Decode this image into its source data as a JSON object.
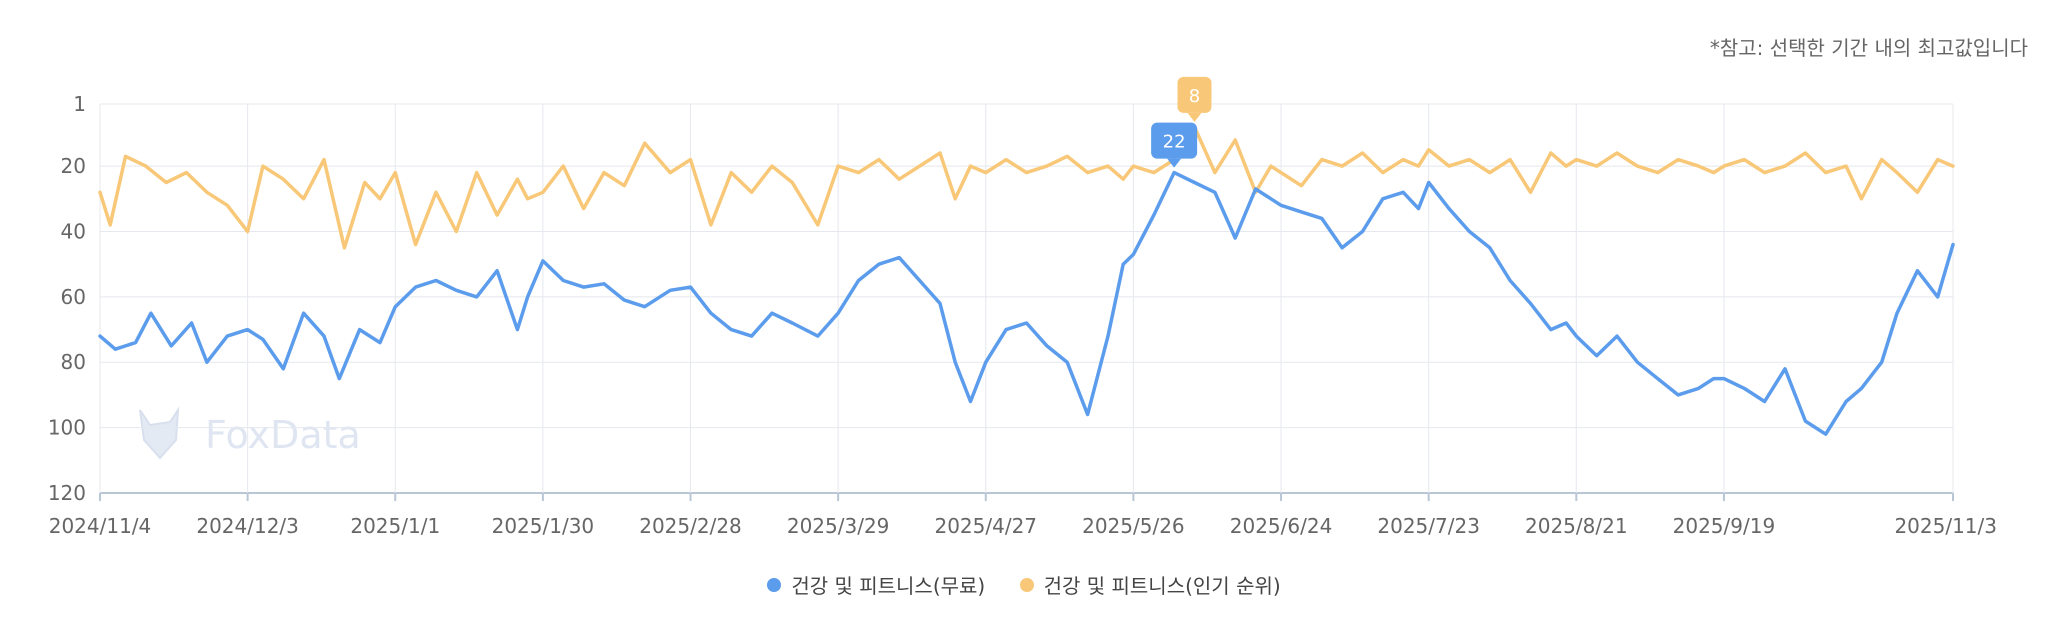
{
  "note": "*참고: 선택한 기간 내의 최고값입니다",
  "watermark": "FoxData",
  "colors": {
    "free": "#5b9cec",
    "popular": "#f8c878",
    "grid": "#e5e8ee",
    "axis": "#b9c6d6"
  },
  "chart_data": {
    "type": "line",
    "y_inverted": true,
    "ylim": [
      1,
      120
    ],
    "y_ticks": [
      "1",
      "20",
      "40",
      "60",
      "80",
      "100",
      "120"
    ],
    "x_ticks": [
      "2024/11/4",
      "2024/12/3",
      "2025/1/1",
      "2025/1/30",
      "2025/2/28",
      "2025/3/29",
      "2025/4/27",
      "2025/5/26",
      "2025/6/24",
      "2025/7/23",
      "2025/8/21",
      "2025/9/19",
      "2025/11/3"
    ],
    "series": [
      {
        "name": "건강 및 피트니스(무료)",
        "color": "#5b9cec",
        "points": [
          [
            "2024/11/4",
            72
          ],
          [
            "2024/11/7",
            76
          ],
          [
            "2024/11/11",
            74
          ],
          [
            "2024/11/14",
            65
          ],
          [
            "2024/11/18",
            75
          ],
          [
            "2024/11/22",
            68
          ],
          [
            "2024/11/25",
            80
          ],
          [
            "2024/11/29",
            72
          ],
          [
            "2024/12/3",
            70
          ],
          [
            "2024/12/6",
            73
          ],
          [
            "2024/12/10",
            82
          ],
          [
            "2024/12/14",
            65
          ],
          [
            "2024/12/18",
            72
          ],
          [
            "2024/12/21",
            85
          ],
          [
            "2024/12/25",
            70
          ],
          [
            "2024/12/29",
            74
          ],
          [
            "2025/1/1",
            63
          ],
          [
            "2025/1/5",
            57
          ],
          [
            "2025/1/9",
            55
          ],
          [
            "2025/1/13",
            58
          ],
          [
            "2025/1/17",
            60
          ],
          [
            "2025/1/21",
            52
          ],
          [
            "2025/1/25",
            70
          ],
          [
            "2025/1/27",
            60
          ],
          [
            "2025/1/30",
            49
          ],
          [
            "2025/2/3",
            55
          ],
          [
            "2025/2/7",
            57
          ],
          [
            "2025/2/11",
            56
          ],
          [
            "2025/2/15",
            61
          ],
          [
            "2025/2/19",
            63
          ],
          [
            "2025/2/24",
            58
          ],
          [
            "2025/2/28",
            57
          ],
          [
            "2025/3/4",
            65
          ],
          [
            "2025/3/8",
            70
          ],
          [
            "2025/3/12",
            72
          ],
          [
            "2025/3/16",
            65
          ],
          [
            "2025/3/20",
            68
          ],
          [
            "2025/3/25",
            72
          ],
          [
            "2025/3/29",
            65
          ],
          [
            "2025/4/2",
            55
          ],
          [
            "2025/4/6",
            50
          ],
          [
            "2025/4/10",
            48
          ],
          [
            "2025/4/14",
            55
          ],
          [
            "2025/4/18",
            62
          ],
          [
            "2025/4/21",
            80
          ],
          [
            "2025/4/24",
            92
          ],
          [
            "2025/4/27",
            80
          ],
          [
            "2025/5/1",
            70
          ],
          [
            "2025/5/5",
            68
          ],
          [
            "2025/5/9",
            75
          ],
          [
            "2025/5/13",
            80
          ],
          [
            "2025/5/17",
            96
          ],
          [
            "2025/5/21",
            72
          ],
          [
            "2025/5/24",
            50
          ],
          [
            "2025/5/26",
            47
          ],
          [
            "2025/5/30",
            35
          ],
          [
            "2025/6/3",
            22
          ],
          [
            "2025/6/7",
            25
          ],
          [
            "2025/6/11",
            28
          ],
          [
            "2025/6/15",
            42
          ],
          [
            "2025/6/19",
            27
          ],
          [
            "2025/6/22",
            30
          ],
          [
            "2025/6/24",
            32
          ],
          [
            "2025/6/28",
            34
          ],
          [
            "2025/7/2",
            36
          ],
          [
            "2025/7/6",
            45
          ],
          [
            "2025/7/10",
            40
          ],
          [
            "2025/7/14",
            30
          ],
          [
            "2025/7/18",
            28
          ],
          [
            "2025/7/21",
            33
          ],
          [
            "2025/7/23",
            25
          ],
          [
            "2025/7/27",
            33
          ],
          [
            "2025/7/31",
            40
          ],
          [
            "2025/8/4",
            45
          ],
          [
            "2025/8/8",
            55
          ],
          [
            "2025/8/12",
            62
          ],
          [
            "2025/8/16",
            70
          ],
          [
            "2025/8/19",
            68
          ],
          [
            "2025/8/21",
            72
          ],
          [
            "2025/8/25",
            78
          ],
          [
            "2025/8/29",
            72
          ],
          [
            "2025/9/2",
            80
          ],
          [
            "2025/9/6",
            85
          ],
          [
            "2025/9/10",
            90
          ],
          [
            "2025/9/14",
            88
          ],
          [
            "2025/9/17",
            85
          ],
          [
            "2025/9/19",
            85
          ],
          [
            "2025/9/23",
            88
          ],
          [
            "2025/9/27",
            92
          ],
          [
            "2025/10/1",
            82
          ],
          [
            "2025/10/5",
            98
          ],
          [
            "2025/10/9",
            102
          ],
          [
            "2025/10/13",
            92
          ],
          [
            "2025/10/16",
            88
          ],
          [
            "2025/10/20",
            80
          ],
          [
            "2025/10/23",
            65
          ],
          [
            "2025/10/27",
            52
          ],
          [
            "2025/10/31",
            60
          ],
          [
            "2025/11/3",
            44
          ]
        ]
      },
      {
        "name": "건강 및 피트니스(인기 순위)",
        "color": "#f8c878",
        "points": [
          [
            "2024/11/4",
            28
          ],
          [
            "2024/11/6",
            38
          ],
          [
            "2024/11/9",
            17
          ],
          [
            "2024/11/13",
            20
          ],
          [
            "2024/11/17",
            25
          ],
          [
            "2024/11/21",
            22
          ],
          [
            "2024/11/25",
            28
          ],
          [
            "2024/11/29",
            32
          ],
          [
            "2024/12/3",
            40
          ],
          [
            "2024/12/6",
            20
          ],
          [
            "2024/12/10",
            24
          ],
          [
            "2024/12/14",
            30
          ],
          [
            "2024/12/18",
            18
          ],
          [
            "2024/12/22",
            45
          ],
          [
            "2024/12/26",
            25
          ],
          [
            "2024/12/29",
            30
          ],
          [
            "2025/1/1",
            22
          ],
          [
            "2025/1/5",
            44
          ],
          [
            "2025/1/9",
            28
          ],
          [
            "2025/1/13",
            40
          ],
          [
            "2025/1/17",
            22
          ],
          [
            "2025/1/21",
            35
          ],
          [
            "2025/1/25",
            24
          ],
          [
            "2025/1/27",
            30
          ],
          [
            "2025/1/30",
            28
          ],
          [
            "2025/2/3",
            20
          ],
          [
            "2025/2/7",
            33
          ],
          [
            "2025/2/11",
            22
          ],
          [
            "2025/2/15",
            26
          ],
          [
            "2025/2/19",
            13
          ],
          [
            "2025/2/24",
            22
          ],
          [
            "2025/2/28",
            18
          ],
          [
            "2025/3/4",
            38
          ],
          [
            "2025/3/8",
            22
          ],
          [
            "2025/3/12",
            28
          ],
          [
            "2025/3/16",
            20
          ],
          [
            "2025/3/20",
            25
          ],
          [
            "2025/3/25",
            38
          ],
          [
            "2025/3/29",
            20
          ],
          [
            "2025/4/2",
            22
          ],
          [
            "2025/4/6",
            18
          ],
          [
            "2025/4/10",
            24
          ],
          [
            "2025/4/14",
            20
          ],
          [
            "2025/4/18",
            16
          ],
          [
            "2025/4/21",
            30
          ],
          [
            "2025/4/24",
            20
          ],
          [
            "2025/4/27",
            22
          ],
          [
            "2025/5/1",
            18
          ],
          [
            "2025/5/5",
            22
          ],
          [
            "2025/5/9",
            20
          ],
          [
            "2025/5/13",
            17
          ],
          [
            "2025/5/17",
            22
          ],
          [
            "2025/5/21",
            20
          ],
          [
            "2025/5/24",
            24
          ],
          [
            "2025/5/26",
            20
          ],
          [
            "2025/5/30",
            22
          ],
          [
            "2025/6/3",
            18
          ],
          [
            "2025/6/7",
            8
          ],
          [
            "2025/6/11",
            22
          ],
          [
            "2025/6/15",
            12
          ],
          [
            "2025/6/19",
            28
          ],
          [
            "2025/6/22",
            20
          ],
          [
            "2025/6/24",
            22
          ],
          [
            "2025/6/28",
            26
          ],
          [
            "2025/7/2",
            18
          ],
          [
            "2025/7/6",
            20
          ],
          [
            "2025/7/10",
            16
          ],
          [
            "2025/7/14",
            22
          ],
          [
            "2025/7/18",
            18
          ],
          [
            "2025/7/21",
            20
          ],
          [
            "2025/7/23",
            15
          ],
          [
            "2025/7/27",
            20
          ],
          [
            "2025/7/31",
            18
          ],
          [
            "2025/8/4",
            22
          ],
          [
            "2025/8/8",
            18
          ],
          [
            "2025/8/12",
            28
          ],
          [
            "2025/8/16",
            16
          ],
          [
            "2025/8/19",
            20
          ],
          [
            "2025/8/21",
            18
          ],
          [
            "2025/8/25",
            20
          ],
          [
            "2025/8/29",
            16
          ],
          [
            "2025/9/2",
            20
          ],
          [
            "2025/9/6",
            22
          ],
          [
            "2025/9/10",
            18
          ],
          [
            "2025/9/14",
            20
          ],
          [
            "2025/9/17",
            22
          ],
          [
            "2025/9/19",
            20
          ],
          [
            "2025/9/23",
            18
          ],
          [
            "2025/9/27",
            22
          ],
          [
            "2025/10/1",
            20
          ],
          [
            "2025/10/5",
            16
          ],
          [
            "2025/10/9",
            22
          ],
          [
            "2025/10/13",
            20
          ],
          [
            "2025/10/16",
            30
          ],
          [
            "2025/10/20",
            18
          ],
          [
            "2025/10/23",
            22
          ],
          [
            "2025/10/27",
            28
          ],
          [
            "2025/10/31",
            18
          ],
          [
            "2025/11/3",
            20
          ]
        ]
      }
    ],
    "highlights": [
      {
        "series": 0,
        "date": "2025/6/3",
        "value": 22,
        "label": "22"
      },
      {
        "series": 1,
        "date": "2025/6/7",
        "value": 8,
        "label": "8"
      }
    ],
    "grid": true,
    "legend_position": "bottom-center"
  }
}
